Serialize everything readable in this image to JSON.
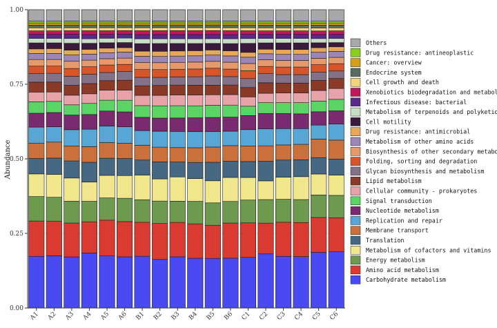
{
  "chart_data": {
    "type": "bar",
    "stacked": true,
    "title": "",
    "xlabel": "",
    "ylabel": "Abundance",
    "ylim": [
      0,
      1
    ],
    "yticks": [
      "0.00",
      "0.25",
      "0.50",
      "0.75",
      "1.00"
    ],
    "categories": [
      "A1",
      "A2",
      "A3",
      "A4",
      "A5",
      "A6",
      "B1",
      "B2",
      "B3",
      "B4",
      "B5",
      "B6",
      "C1",
      "C2",
      "C3",
      "C4",
      "C5",
      "C6"
    ],
    "legend_position": "right",
    "series": [
      {
        "name": "Carbohydrate metabolism",
        "color": "#4a4af2",
        "values": [
          0.171,
          0.173,
          0.17,
          0.183,
          0.173,
          0.171,
          0.172,
          0.162,
          0.171,
          0.166,
          0.166,
          0.166,
          0.168,
          0.179,
          0.171,
          0.17,
          0.183,
          0.186
        ]
      },
      {
        "name": "Amino acid metabolism",
        "color": "#d93b30",
        "values": [
          0.117,
          0.115,
          0.113,
          0.104,
          0.119,
          0.118,
          0.113,
          0.12,
          0.115,
          0.115,
          0.111,
          0.117,
          0.115,
          0.102,
          0.113,
          0.113,
          0.115,
          0.113
        ]
      },
      {
        "name": "Energy metabolism",
        "color": "#6e9a4f",
        "values": [
          0.081,
          0.079,
          0.073,
          0.068,
          0.074,
          0.078,
          0.075,
          0.075,
          0.071,
          0.075,
          0.075,
          0.072,
          0.076,
          0.078,
          0.076,
          0.076,
          0.074,
          0.074
        ]
      },
      {
        "name": "Metabolism of cofactors and vitamins",
        "color": "#f0e68c",
        "values": [
          0.075,
          0.076,
          0.077,
          0.064,
          0.075,
          0.076,
          0.082,
          0.074,
          0.081,
          0.076,
          0.074,
          0.08,
          0.075,
          0.062,
          0.073,
          0.076,
          0.069,
          0.067
        ]
      },
      {
        "name": "Translation",
        "color": "#466883",
        "values": [
          0.051,
          0.054,
          0.057,
          0.066,
          0.057,
          0.057,
          0.05,
          0.057,
          0.05,
          0.054,
          0.062,
          0.054,
          0.053,
          0.065,
          0.057,
          0.056,
          0.054,
          0.053
        ]
      },
      {
        "name": "Membrane transport",
        "color": "#c9703c",
        "values": [
          0.051,
          0.053,
          0.05,
          0.052,
          0.052,
          0.051,
          0.049,
          0.049,
          0.048,
          0.049,
          0.051,
          0.052,
          0.052,
          0.051,
          0.05,
          0.051,
          0.061,
          0.063
        ]
      },
      {
        "name": "Replication and repair",
        "color": "#58a6d6",
        "values": [
          0.053,
          0.051,
          0.054,
          0.058,
          0.055,
          0.055,
          0.049,
          0.053,
          0.054,
          0.054,
          0.052,
          0.048,
          0.054,
          0.056,
          0.054,
          0.052,
          0.046,
          0.053
        ]
      },
      {
        "name": "Nucleotide metabolism",
        "color": "#7a2a6e",
        "values": [
          0.046,
          0.047,
          0.049,
          0.049,
          0.05,
          0.05,
          0.044,
          0.044,
          0.045,
          0.046,
          0.047,
          0.047,
          0.047,
          0.051,
          0.05,
          0.049,
          0.044,
          0.044
        ]
      },
      {
        "name": "Signal transduction",
        "color": "#5ad465",
        "values": [
          0.038,
          0.037,
          0.034,
          0.037,
          0.036,
          0.039,
          0.039,
          0.041,
          0.041,
          0.04,
          0.041,
          0.04,
          0.031,
          0.036,
          0.036,
          0.037,
          0.035,
          0.038
        ]
      },
      {
        "name": "Cellular community - prokaryotes",
        "color": "#e8a3a9",
        "values": [
          0.032,
          0.031,
          0.032,
          0.032,
          0.033,
          0.034,
          0.034,
          0.035,
          0.036,
          0.036,
          0.035,
          0.035,
          0.031,
          0.031,
          0.032,
          0.032,
          0.035,
          0.036
        ]
      },
      {
        "name": "Lipid metabolism",
        "color": "#8b3a28",
        "values": [
          0.033,
          0.033,
          0.033,
          0.034,
          0.032,
          0.033,
          0.032,
          0.033,
          0.033,
          0.033,
          0.032,
          0.032,
          0.031,
          0.035,
          0.033,
          0.033,
          0.033,
          0.033
        ]
      },
      {
        "name": "Glycan biosynthesis and metabolism",
        "color": "#837188",
        "values": [
          0.028,
          0.029,
          0.03,
          0.031,
          0.027,
          0.029,
          0.028,
          0.027,
          0.027,
          0.028,
          0.031,
          0.028,
          0.03,
          0.03,
          0.028,
          0.028,
          0.027,
          0.025
        ]
      },
      {
        "name": "Folding, sorting and degradation",
        "color": "#d7552a",
        "values": [
          0.025,
          0.024,
          0.026,
          0.025,
          0.025,
          0.024,
          0.026,
          0.026,
          0.026,
          0.026,
          0.026,
          0.025,
          0.026,
          0.024,
          0.025,
          0.025,
          0.025,
          0.024
        ]
      },
      {
        "name": "Biosynthesis of other secondary metabolites",
        "color": "#e6996a",
        "values": [
          0.022,
          0.022,
          0.024,
          0.022,
          0.021,
          0.021,
          0.023,
          0.023,
          0.023,
          0.023,
          0.023,
          0.023,
          0.024,
          0.022,
          0.022,
          0.022,
          0.021,
          0.021
        ]
      },
      {
        "name": "Metabolism of other amino acids",
        "color": "#9b86b5",
        "values": [
          0.02,
          0.02,
          0.021,
          0.02,
          0.02,
          0.02,
          0.021,
          0.021,
          0.021,
          0.021,
          0.021,
          0.021,
          0.021,
          0.02,
          0.02,
          0.02,
          0.02,
          0.02
        ]
      },
      {
        "name": "Drug resistance: antimicrobial",
        "color": "#e8a85a",
        "values": [
          0.015,
          0.016,
          0.016,
          0.016,
          0.015,
          0.015,
          0.017,
          0.017,
          0.017,
          0.017,
          0.017,
          0.017,
          0.016,
          0.015,
          0.016,
          0.016,
          0.015,
          0.015
        ]
      },
      {
        "name": "Cell motility",
        "color": "#3a1a3d",
        "values": [
          0.02,
          0.019,
          0.023,
          0.02,
          0.018,
          0.017,
          0.025,
          0.026,
          0.025,
          0.024,
          0.022,
          0.024,
          0.03,
          0.021,
          0.022,
          0.022,
          0.016,
          0.014
        ]
      },
      {
        "name": "Metabolism of terpenoids and polyketides",
        "color": "#c8dfc3",
        "values": [
          0.015,
          0.015,
          0.016,
          0.015,
          0.015,
          0.015,
          0.016,
          0.016,
          0.016,
          0.016,
          0.016,
          0.016,
          0.016,
          0.015,
          0.015,
          0.015,
          0.014,
          0.014
        ]
      },
      {
        "name": "Infectious disease: bacterial",
        "color": "#5a2a8a",
        "values": [
          0.013,
          0.013,
          0.014,
          0.014,
          0.013,
          0.013,
          0.014,
          0.014,
          0.014,
          0.014,
          0.014,
          0.014,
          0.014,
          0.013,
          0.013,
          0.013,
          0.013,
          0.013
        ]
      },
      {
        "name": "Xenobiotics biodegradation and metabolism",
        "color": "#c2185b",
        "values": [
          0.012,
          0.012,
          0.012,
          0.013,
          0.012,
          0.012,
          0.013,
          0.013,
          0.013,
          0.013,
          0.013,
          0.013,
          0.012,
          0.012,
          0.012,
          0.012,
          0.012,
          0.012
        ]
      },
      {
        "name": "Cell growth and death",
        "color": "#f2d57a",
        "values": [
          0.01,
          0.01,
          0.01,
          0.01,
          0.01,
          0.01,
          0.01,
          0.01,
          0.01,
          0.01,
          0.01,
          0.01,
          0.01,
          0.01,
          0.01,
          0.01,
          0.01,
          0.01
        ]
      },
      {
        "name": "Endocrine system",
        "color": "#586b5e",
        "values": [
          0.009,
          0.009,
          0.009,
          0.009,
          0.009,
          0.009,
          0.009,
          0.009,
          0.009,
          0.009,
          0.009,
          0.009,
          0.009,
          0.009,
          0.009,
          0.009,
          0.009,
          0.009
        ]
      },
      {
        "name": "Cancer: overview",
        "color": "#d4a017",
        "values": [
          0.007,
          0.007,
          0.007,
          0.007,
          0.007,
          0.007,
          0.007,
          0.007,
          0.007,
          0.007,
          0.007,
          0.007,
          0.007,
          0.007,
          0.007,
          0.007,
          0.007,
          0.007
        ]
      },
      {
        "name": "Drug resistance: antineoplastic",
        "color": "#8ccc1c",
        "values": [
          0.006,
          0.006,
          0.006,
          0.006,
          0.006,
          0.006,
          0.006,
          0.006,
          0.006,
          0.006,
          0.006,
          0.006,
          0.006,
          0.006,
          0.006,
          0.006,
          0.006,
          0.006
        ]
      },
      {
        "name": "Others",
        "color": "#a8a8a8",
        "values": [
          0.038,
          0.038,
          0.038,
          0.038,
          0.038,
          0.038,
          0.038,
          0.038,
          0.038,
          0.038,
          0.038,
          0.038,
          0.038,
          0.038,
          0.038,
          0.038,
          0.038,
          0.038
        ]
      }
    ]
  }
}
